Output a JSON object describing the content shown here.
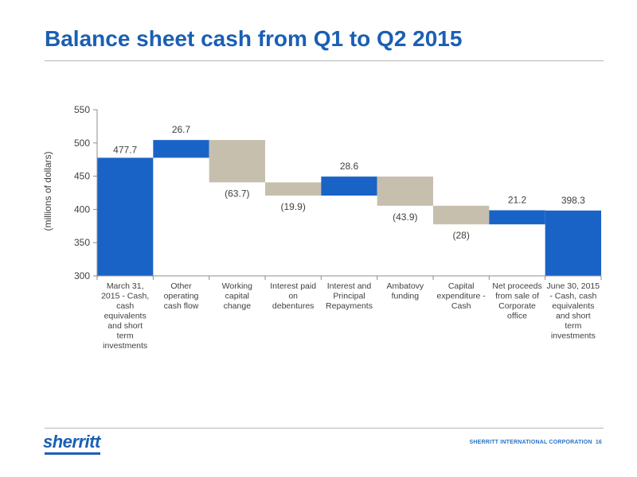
{
  "slide": {
    "title": "Balance sheet cash from Q1 to Q2 2015",
    "footer_logo": "sherritt",
    "footer_company": "SHERRITT INTERNATIONAL CORPORATION",
    "footer_page": "16"
  },
  "colors": {
    "title": "#1a5fb4",
    "positive": "#1a63c6",
    "negative": "#c6bfae",
    "total": "#1a63c6",
    "axis": "#8c8c8c",
    "text": "#404040"
  },
  "chart_data": {
    "type": "bar",
    "subtype": "waterfall",
    "title": "",
    "xlabel": "",
    "ylabel": "(millions of dollars)",
    "ylim": [
      300,
      550
    ],
    "yticks": [
      300,
      350,
      400,
      450,
      500,
      550
    ],
    "grid": false,
    "categories": [
      "March 31, 2015 - Cash, cash equivalents and short term investments",
      "Other operating cash flow",
      "Working capital change",
      "Interest paid on debentures",
      "Interest and Principal Repayments",
      "Ambatovy funding",
      "Capital expenditure - Cash",
      "Net proceeds from sale of Corporate office",
      "June 30, 2015 - Cash, cash equivalents and short term investments"
    ],
    "category_lines": [
      [
        "March 31,",
        "2015 - Cash,",
        "cash",
        "equivalents",
        "and short",
        "term",
        "investments"
      ],
      [
        "Other",
        "operating",
        "cash flow"
      ],
      [
        "Working",
        "capital",
        "change"
      ],
      [
        "Interest paid",
        "on",
        "debentures"
      ],
      [
        "Interest and",
        "Principal",
        "Repayments"
      ],
      [
        "Ambatovy",
        "funding"
      ],
      [
        "Capital",
        "expenditure -",
        "Cash"
      ],
      [
        "Net proceeds",
        "from sale of",
        "Corporate",
        "office"
      ],
      [
        "June 30, 2015",
        "- Cash, cash",
        "equivalents",
        "and short",
        "term",
        "investments"
      ]
    ],
    "kinds": [
      "total",
      "increase",
      "decrease",
      "decrease",
      "increase",
      "decrease",
      "decrease",
      "increase",
      "total"
    ],
    "values": [
      477.7,
      26.7,
      -63.7,
      -19.9,
      28.6,
      -43.9,
      -28,
      21.2,
      398.3
    ],
    "data_labels": [
      "477.7",
      "26.7",
      "(63.7)",
      "(19.9)",
      "28.6",
      "(43.9)",
      "(28)",
      "21.2",
      "398.3"
    ]
  }
}
